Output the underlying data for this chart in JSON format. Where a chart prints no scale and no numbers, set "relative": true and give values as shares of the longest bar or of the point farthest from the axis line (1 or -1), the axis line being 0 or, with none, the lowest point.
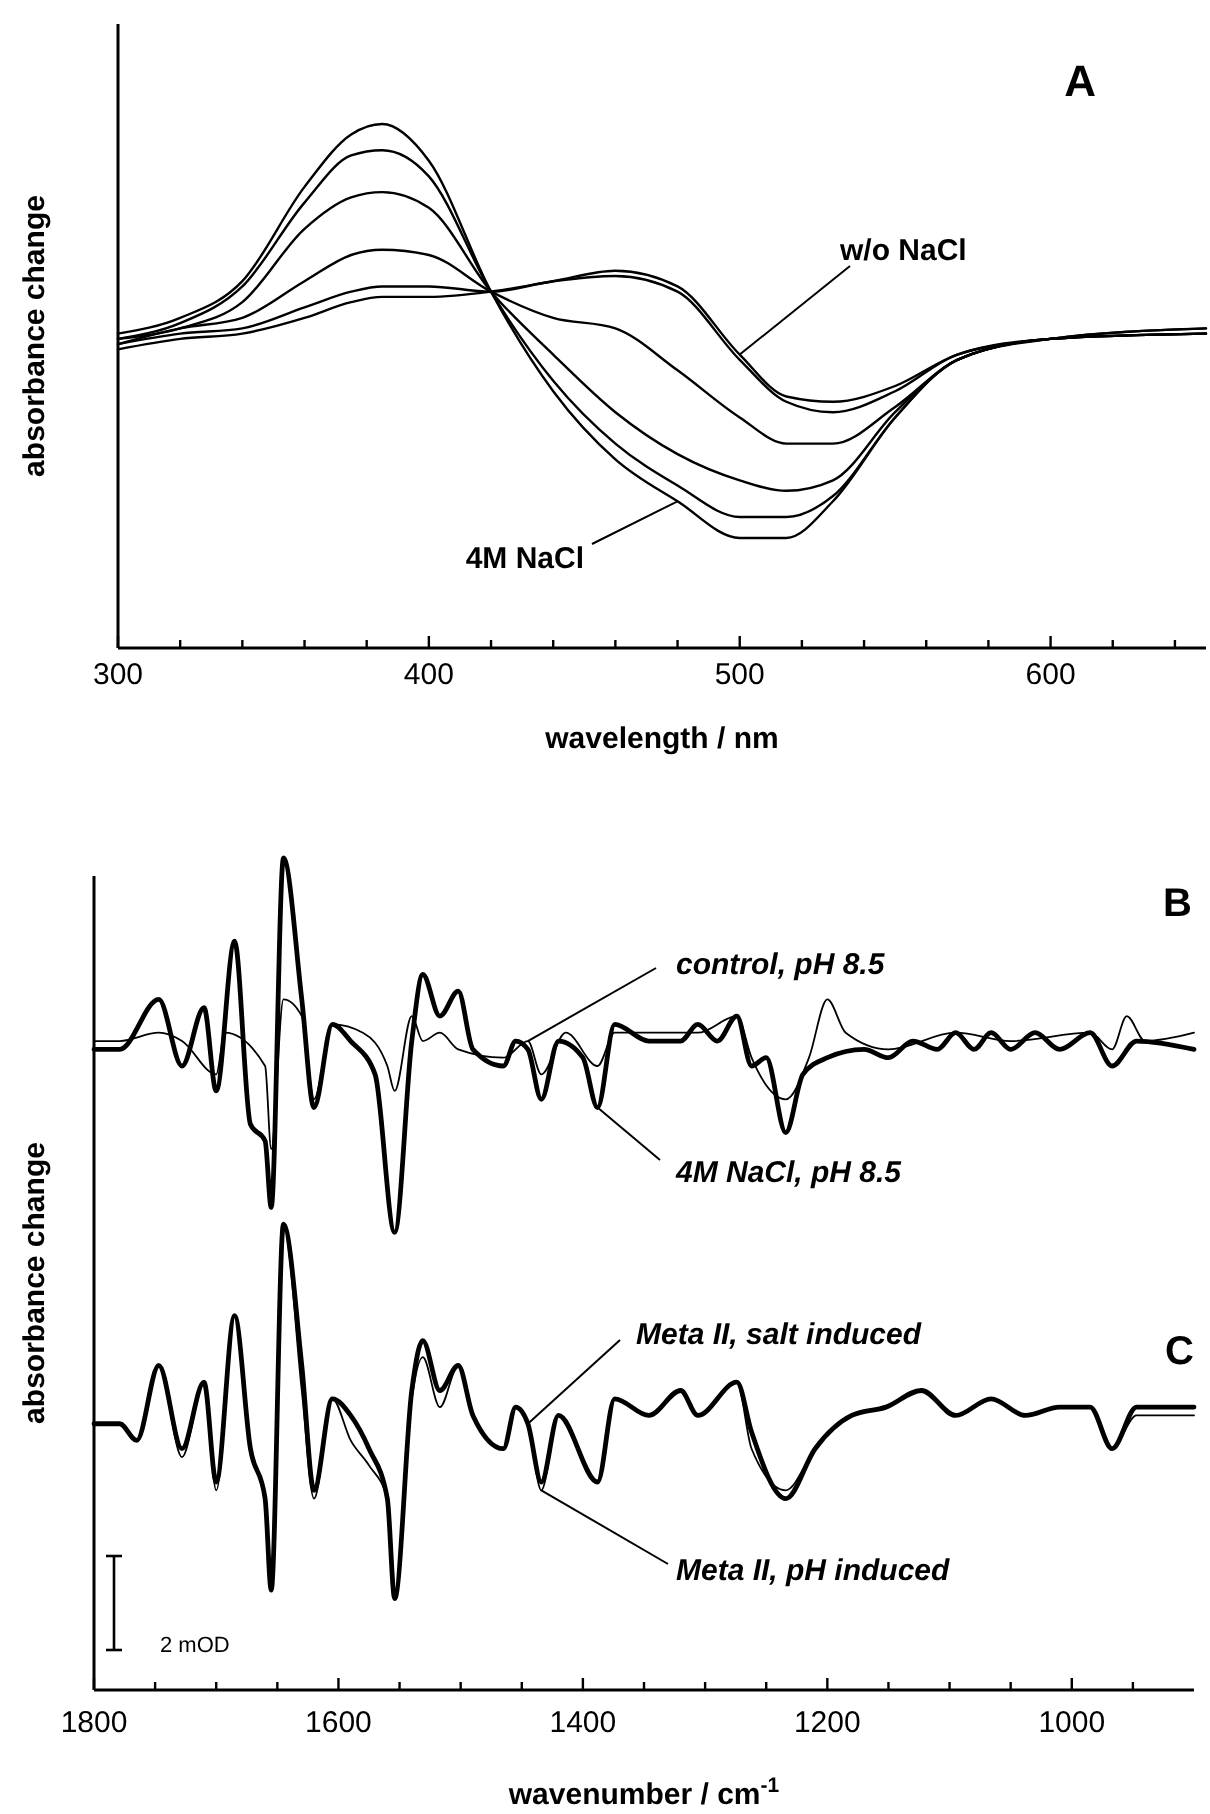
{
  "chart_data": [
    {
      "type": "line",
      "relative": true,
      "xlabel": "wavelength / nm",
      "ylabel": "absorbance change",
      "annotations": [
        "A"
      ],
      "xlim": [
        300,
        650
      ],
      "xticks": [
        300,
        {
          "value": 320,
          "label": null
        },
        {
          "value": 340,
          "label": null
        },
        {
          "value": 360,
          "label": null
        },
        {
          "value": 380,
          "label": null
        },
        400,
        {
          "value": 420,
          "label": null
        },
        {
          "value": 440,
          "label": null
        },
        {
          "value": 460,
          "label": null
        },
        {
          "value": 480,
          "label": null
        },
        500,
        {
          "value": 520,
          "label": null
        },
        {
          "value": 540,
          "label": null
        },
        {
          "value": 560,
          "label": null
        },
        {
          "value": 580,
          "label": null
        },
        600,
        {
          "value": 620,
          "label": null
        },
        {
          "value": 640,
          "label": null
        }
      ],
      "x": [
        300,
        320,
        340,
        360,
        375,
        385,
        400,
        420,
        440,
        460,
        480,
        500,
        515,
        530,
        550,
        570,
        600,
        650
      ],
      "series": [
        {
          "name": "4M NaCl",
          "color": "#000000",
          "values": [
            0.6,
            0.63,
            0.7,
            0.88,
            0.98,
            1.0,
            0.93,
            0.68,
            0.49,
            0.36,
            0.28,
            0.21,
            0.21,
            0.28,
            0.44,
            0.55,
            0.59,
            0.6
          ]
        },
        {
          "color": "#000000",
          "values": [
            0.59,
            0.62,
            0.69,
            0.85,
            0.94,
            0.95,
            0.9,
            0.68,
            0.51,
            0.39,
            0.31,
            0.25,
            0.25,
            0.29,
            0.44,
            0.55,
            0.59,
            0.6
          ]
        },
        {
          "color": "#000000",
          "values": [
            0.59,
            0.61,
            0.66,
            0.8,
            0.86,
            0.87,
            0.84,
            0.68,
            0.56,
            0.45,
            0.37,
            0.32,
            0.3,
            0.32,
            0.45,
            0.55,
            0.59,
            0.61
          ]
        },
        {
          "color": "#000000",
          "values": [
            0.58,
            0.61,
            0.63,
            0.7,
            0.75,
            0.76,
            0.75,
            0.68,
            0.63,
            0.61,
            0.53,
            0.44,
            0.39,
            0.39,
            0.46,
            0.55,
            0.59,
            0.6
          ]
        },
        {
          "color": "#000000",
          "values": [
            0.58,
            0.6,
            0.61,
            0.65,
            0.68,
            0.69,
            0.69,
            0.68,
            0.7,
            0.71,
            0.68,
            0.55,
            0.47,
            0.45,
            0.49,
            0.56,
            0.59,
            0.61
          ]
        },
        {
          "name": "w/o NaCl",
          "color": "#000000",
          "values": [
            0.57,
            0.59,
            0.6,
            0.63,
            0.66,
            0.67,
            0.67,
            0.68,
            0.7,
            0.72,
            0.69,
            0.56,
            0.48,
            0.47,
            0.5,
            0.56,
            0.59,
            0.6
          ]
        }
      ]
    },
    {
      "type": "line",
      "relative": true,
      "xlabel": "wavenumber / cm$^{-1}$",
      "ylabel": "absorbance change",
      "annotations": [
        "B",
        "C",
        "2 mOD"
      ],
      "xlim": [
        1800,
        900
      ],
      "xticks": [
        1800,
        {
          "value": 1750,
          "label": null
        },
        {
          "value": 1700,
          "label": null
        },
        {
          "value": 1650,
          "label": null
        },
        1600,
        {
          "value": 1550,
          "label": null
        },
        {
          "value": 1500,
          "label": null
        },
        {
          "value": 1450,
          "label": null
        },
        1400,
        {
          "value": 1350,
          "label": null
        },
        {
          "value": 1300,
          "label": null
        },
        {
          "value": 1250,
          "label": null
        },
        1200,
        {
          "value": 1150,
          "label": null
        },
        {
          "value": 1100,
          "label": null
        },
        {
          "value": 1050,
          "label": null
        },
        1000,
        {
          "value": 950,
          "label": null
        }
      ],
      "series": [
        {
          "name": "control, pH 8.5",
          "color": "#000000",
          "x": [
            1800,
            1779,
            1747,
            1728,
            1700,
            1693,
            1660,
            1655,
            1645,
            1630,
            1620,
            1605,
            1580,
            1560,
            1554,
            1540,
            1531,
            1517,
            1502,
            1465,
            1445,
            1434,
            1414,
            1388,
            1374,
            1306,
            1274,
            1262,
            1234,
            1215,
            1200,
            1185,
            1150,
            1095,
            1050,
            985,
            967,
            955,
            940,
            900
          ],
          "values": [
            0.78,
            0.78,
            0.79,
            0.78,
            0.74,
            0.79,
            0.75,
            0.65,
            0.83,
            0.81,
            0.71,
            0.8,
            0.79,
            0.75,
            0.72,
            0.81,
            0.78,
            0.79,
            0.77,
            0.76,
            0.78,
            0.74,
            0.79,
            0.75,
            0.79,
            0.79,
            0.81,
            0.76,
            0.71,
            0.76,
            0.83,
            0.79,
            0.77,
            0.79,
            0.78,
            0.79,
            0.77,
            0.81,
            0.78,
            0.79
          ]
        },
        {
          "name": "4M NaCl, pH 8.5",
          "color": "#000000",
          "x": [
            1800,
            1779,
            1747,
            1728,
            1710,
            1700,
            1685,
            1672,
            1660,
            1655,
            1645,
            1630,
            1620,
            1605,
            1590,
            1570,
            1554,
            1540,
            1531,
            1517,
            1502,
            1490,
            1465,
            1455,
            1445,
            1434,
            1420,
            1400,
            1388,
            1374,
            1346,
            1320,
            1306,
            1290,
            1274,
            1262,
            1250,
            1234,
            1220,
            1200,
            1170,
            1150,
            1130,
            1110,
            1095,
            1080,
            1066,
            1050,
            1030,
            1010,
            985,
            967,
            947,
            900
          ],
          "values": [
            0.77,
            0.77,
            0.83,
            0.75,
            0.82,
            0.72,
            0.9,
            0.68,
            0.66,
            0.58,
            1.0,
            0.83,
            0.7,
            0.8,
            0.78,
            0.74,
            0.55,
            0.78,
            0.86,
            0.81,
            0.84,
            0.77,
            0.75,
            0.78,
            0.77,
            0.71,
            0.78,
            0.76,
            0.7,
            0.8,
            0.78,
            0.78,
            0.8,
            0.78,
            0.81,
            0.75,
            0.76,
            0.67,
            0.74,
            0.76,
            0.77,
            0.76,
            0.78,
            0.77,
            0.79,
            0.77,
            0.79,
            0.77,
            0.79,
            0.77,
            0.79,
            0.75,
            0.78,
            0.77
          ]
        },
        {
          "name": "Meta II, salt induced",
          "color": "#000000",
          "x": [
            1800,
            1779,
            1765,
            1747,
            1728,
            1710,
            1700,
            1685,
            1672,
            1660,
            1655,
            1645,
            1630,
            1620,
            1605,
            1590,
            1575,
            1560,
            1554,
            1540,
            1531,
            1517,
            1502,
            1490,
            1465,
            1455,
            1445,
            1434,
            1420,
            1388,
            1374,
            1346,
            1320,
            1306,
            1274,
            1262,
            1234,
            1210,
            1180,
            1152,
            1123,
            1095,
            1066,
            1038,
            1010,
            985,
            967,
            947,
            900
          ],
          "values": [
            0.32,
            0.32,
            0.3,
            0.39,
            0.29,
            0.37,
            0.25,
            0.45,
            0.29,
            0.23,
            0.12,
            0.56,
            0.39,
            0.24,
            0.35,
            0.33,
            0.29,
            0.23,
            0.11,
            0.36,
            0.42,
            0.36,
            0.39,
            0.33,
            0.29,
            0.34,
            0.32,
            0.25,
            0.33,
            0.25,
            0.35,
            0.33,
            0.36,
            0.33,
            0.37,
            0.31,
            0.23,
            0.29,
            0.33,
            0.34,
            0.36,
            0.33,
            0.35,
            0.33,
            0.34,
            0.34,
            0.29,
            0.34,
            0.34
          ]
        },
        {
          "name": "Meta II, pH induced",
          "color": "#000000",
          "x": [
            1800,
            1779,
            1765,
            1747,
            1728,
            1710,
            1700,
            1685,
            1672,
            1660,
            1655,
            1645,
            1630,
            1620,
            1605,
            1590,
            1575,
            1560,
            1554,
            1540,
            1531,
            1517,
            1502,
            1490,
            1465,
            1455,
            1445,
            1434,
            1420,
            1388,
            1374,
            1346,
            1320,
            1306,
            1274,
            1262,
            1234,
            1210,
            1180,
            1152,
            1123,
            1095,
            1066,
            1038,
            1010,
            985,
            967,
            947,
            900
          ],
          "values": [
            0.32,
            0.32,
            0.3,
            0.39,
            0.28,
            0.37,
            0.24,
            0.45,
            0.29,
            0.23,
            0.12,
            0.56,
            0.36,
            0.23,
            0.35,
            0.3,
            0.27,
            0.23,
            0.11,
            0.35,
            0.4,
            0.34,
            0.39,
            0.33,
            0.29,
            0.34,
            0.32,
            0.24,
            0.33,
            0.25,
            0.35,
            0.33,
            0.36,
            0.33,
            0.37,
            0.29,
            0.24,
            0.29,
            0.33,
            0.34,
            0.36,
            0.33,
            0.35,
            0.33,
            0.34,
            0.34,
            0.29,
            0.33,
            0.33
          ]
        }
      ]
    }
  ]
}
